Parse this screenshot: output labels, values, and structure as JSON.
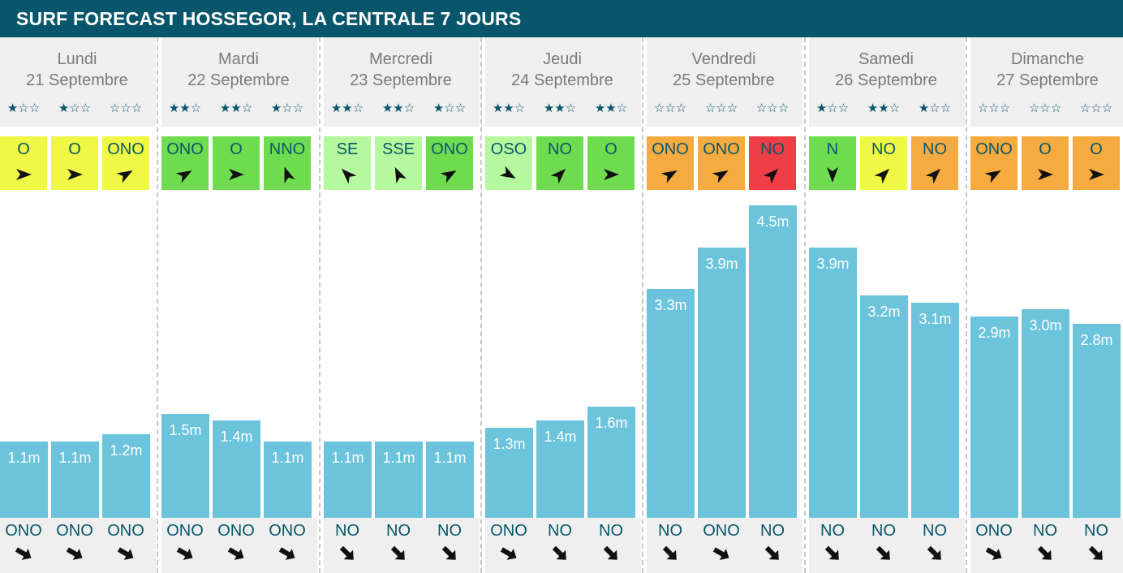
{
  "header": {
    "title": "SURF FORECAST HOSSEGOR, LA CENTRALE 7 JOURS"
  },
  "colors": {
    "header_bg": "#08566b",
    "bar": "#6cc4dc",
    "yellow": "#eef845",
    "green": "#6fdc50",
    "light_green": "#b4f99e",
    "orange": "#f5ab40",
    "red": "#ef3e45"
  },
  "chart_data": {
    "type": "bar",
    "title": "SURF FORECAST HOSSEGOR, LA CENTRALE 7 JOURS",
    "days": [
      {
        "name": "Lundi",
        "date": "21 Septembre",
        "slots": [
          {
            "stars": 1,
            "wind_dir": "O",
            "wind_color": "yellow",
            "wind_arrow_deg": 0,
            "wave_m": 1.1,
            "wave_label": "1.1m",
            "swell_dir": "ONO",
            "swell_arrow_deg": 30
          },
          {
            "stars": 1,
            "wind_dir": "O",
            "wind_color": "yellow",
            "wind_arrow_deg": 0,
            "wave_m": 1.1,
            "wave_label": "1.1m",
            "swell_dir": "ONO",
            "swell_arrow_deg": 30
          },
          {
            "stars": 0,
            "wind_dir": "ONO",
            "wind_color": "yellow",
            "wind_arrow_deg": -30,
            "wave_m": 1.2,
            "wave_label": "1.2m",
            "swell_dir": "ONO",
            "swell_arrow_deg": 30
          }
        ]
      },
      {
        "name": "Mardi",
        "date": "22 Septembre",
        "slots": [
          {
            "stars": 2,
            "wind_dir": "ONO",
            "wind_color": "green",
            "wind_arrow_deg": -30,
            "wave_m": 1.5,
            "wave_label": "1.5m",
            "swell_dir": "ONO",
            "swell_arrow_deg": 30
          },
          {
            "stars": 2,
            "wind_dir": "O",
            "wind_color": "green",
            "wind_arrow_deg": 0,
            "wave_m": 1.4,
            "wave_label": "1.4m",
            "swell_dir": "ONO",
            "swell_arrow_deg": 30
          },
          {
            "stars": 1,
            "wind_dir": "NNO",
            "wind_color": "green",
            "wind_arrow_deg": -110,
            "wave_m": 1.1,
            "wave_label": "1.1m",
            "swell_dir": "ONO",
            "swell_arrow_deg": 30
          }
        ]
      },
      {
        "name": "Mercredi",
        "date": "23 Septembre",
        "slots": [
          {
            "stars": 2,
            "wind_dir": "SE",
            "wind_color": "light_green",
            "wind_arrow_deg": 225,
            "wave_m": 1.1,
            "wave_label": "1.1m",
            "swell_dir": "NO",
            "swell_arrow_deg": 45
          },
          {
            "stars": 2,
            "wind_dir": "SSE",
            "wind_color": "light_green",
            "wind_arrow_deg": 245,
            "wave_m": 1.1,
            "wave_label": "1.1m",
            "swell_dir": "NO",
            "swell_arrow_deg": 45
          },
          {
            "stars": 1,
            "wind_dir": "ONO",
            "wind_color": "green",
            "wind_arrow_deg": -30,
            "wave_m": 1.1,
            "wave_label": "1.1m",
            "swell_dir": "NO",
            "swell_arrow_deg": 45
          }
        ]
      },
      {
        "name": "Jeudi",
        "date": "24 Septembre",
        "slots": [
          {
            "stars": 2,
            "wind_dir": "OSO",
            "wind_color": "light_green",
            "wind_arrow_deg": 30,
            "wave_m": 1.3,
            "wave_label": "1.3m",
            "swell_dir": "ONO",
            "swell_arrow_deg": 30
          },
          {
            "stars": 2,
            "wind_dir": "NO",
            "wind_color": "green",
            "wind_arrow_deg": -45,
            "wave_m": 1.4,
            "wave_label": "1.4m",
            "swell_dir": "NO",
            "swell_arrow_deg": 45
          },
          {
            "stars": 2,
            "wind_dir": "O",
            "wind_color": "green",
            "wind_arrow_deg": 0,
            "wave_m": 1.6,
            "wave_label": "1.6m",
            "swell_dir": "NO",
            "swell_arrow_deg": 45
          }
        ]
      },
      {
        "name": "Vendredi",
        "date": "25 Septembre",
        "slots": [
          {
            "stars": 0,
            "wind_dir": "ONO",
            "wind_color": "orange",
            "wind_arrow_deg": -30,
            "wave_m": 3.3,
            "wave_label": "3.3m",
            "swell_dir": "NO",
            "swell_arrow_deg": 45
          },
          {
            "stars": 0,
            "wind_dir": "ONO",
            "wind_color": "orange",
            "wind_arrow_deg": -30,
            "wave_m": 3.9,
            "wave_label": "3.9m",
            "swell_dir": "ONO",
            "swell_arrow_deg": 30
          },
          {
            "stars": 0,
            "wind_dir": "NO",
            "wind_color": "red",
            "wind_arrow_deg": -45,
            "wave_m": 4.5,
            "wave_label": "4.5m",
            "swell_dir": "NO",
            "swell_arrow_deg": 45
          }
        ]
      },
      {
        "name": "Samedi",
        "date": "26 Septembre",
        "slots": [
          {
            "stars": 1,
            "wind_dir": "N",
            "wind_color": "green",
            "wind_arrow_deg": 90,
            "wave_m": 3.9,
            "wave_label": "3.9m",
            "swell_dir": "NO",
            "swell_arrow_deg": 45
          },
          {
            "stars": 2,
            "wind_dir": "NO",
            "wind_color": "yellow",
            "wind_arrow_deg": -45,
            "wave_m": 3.2,
            "wave_label": "3.2m",
            "swell_dir": "NO",
            "swell_arrow_deg": 45
          },
          {
            "stars": 1,
            "wind_dir": "NO",
            "wind_color": "orange",
            "wind_arrow_deg": -45,
            "wave_m": 3.1,
            "wave_label": "3.1m",
            "swell_dir": "NO",
            "swell_arrow_deg": 45
          }
        ]
      },
      {
        "name": "Dimanche",
        "date": "27 Septembre",
        "slots": [
          {
            "stars": 0,
            "wind_dir": "ONO",
            "wind_color": "orange",
            "wind_arrow_deg": -30,
            "wave_m": 2.9,
            "wave_label": "2.9m",
            "swell_dir": "ONO",
            "swell_arrow_deg": 30
          },
          {
            "stars": 0,
            "wind_dir": "O",
            "wind_color": "orange",
            "wind_arrow_deg": 0,
            "wave_m": 3.0,
            "wave_label": "3.0m",
            "swell_dir": "NO",
            "swell_arrow_deg": 45
          },
          {
            "stars": 0,
            "wind_dir": "O",
            "wind_color": "orange",
            "wind_arrow_deg": 0,
            "wave_m": 2.8,
            "wave_label": "2.8m",
            "swell_dir": "NO",
            "swell_arrow_deg": 45
          }
        ]
      }
    ]
  }
}
